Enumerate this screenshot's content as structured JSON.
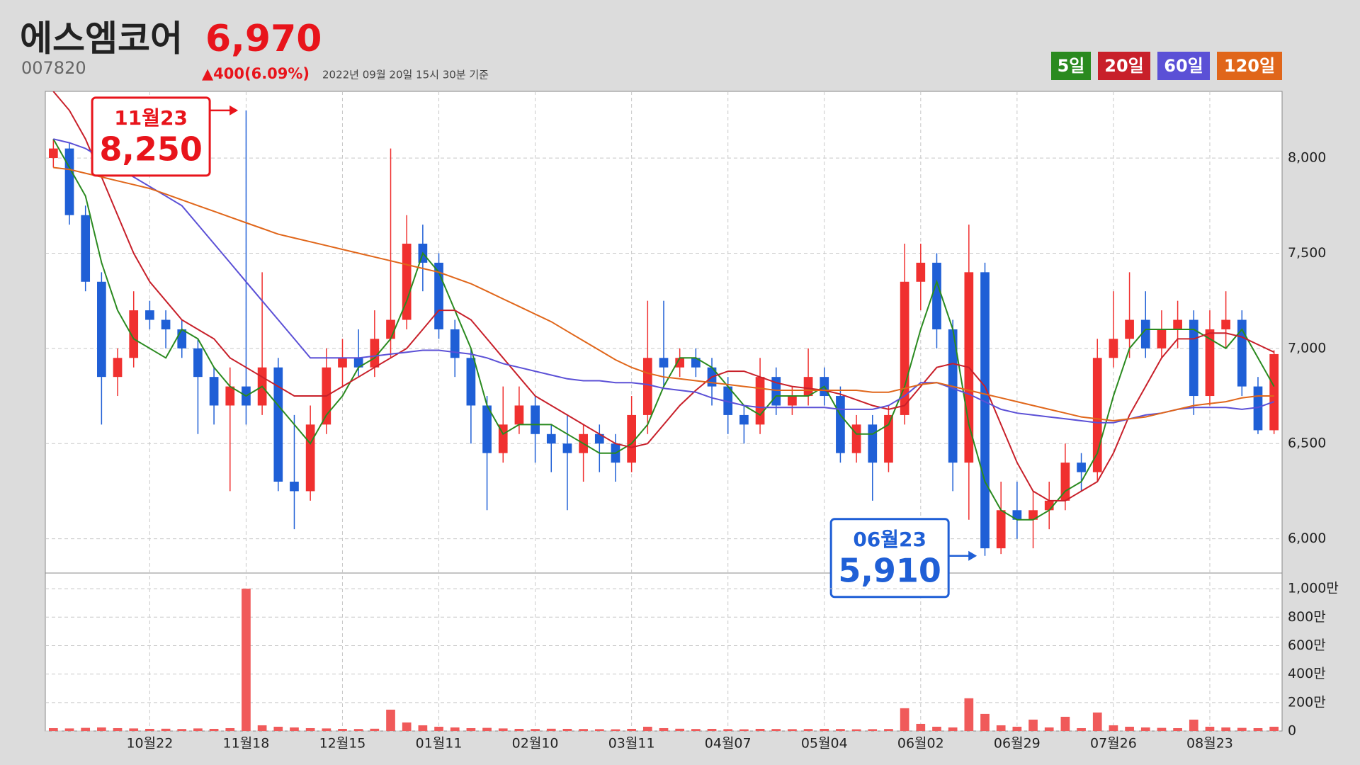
{
  "header": {
    "name": "에스엠코어",
    "price": "6,970",
    "code": "007820",
    "change": "▲400(6.09%)",
    "timestamp": "2022년 09월 20일 15시 30분 기준"
  },
  "chart_data": [
    {
      "type": "candlestick",
      "up_color": "#f0302f",
      "down_color": "#1f5fd6",
      "grid": true,
      "categories": [
        null,
        null,
        null,
        null,
        null,
        null,
        "10월22",
        null,
        null,
        null,
        null,
        null,
        "11월18",
        null,
        null,
        null,
        null,
        null,
        "12월15",
        null,
        null,
        null,
        null,
        null,
        "01월11",
        null,
        null,
        null,
        null,
        null,
        "02월10",
        null,
        null,
        null,
        null,
        null,
        "03월11",
        null,
        null,
        null,
        null,
        null,
        "04월07",
        null,
        null,
        null,
        null,
        null,
        "05월04",
        null,
        null,
        null,
        null,
        null,
        "06월02",
        null,
        null,
        null,
        null,
        null,
        "06월29",
        null,
        null,
        null,
        null,
        null,
        "07월26",
        null,
        null,
        null,
        null,
        null,
        "08월23",
        null,
        null,
        null,
        null
      ],
      "open": [
        8000,
        8050,
        7700,
        7350,
        6850,
        6950,
        7200,
        7150,
        7100,
        7000,
        6850,
        6700,
        6800,
        6700,
        6900,
        6300,
        6250,
        6600,
        6900,
        6950,
        6900,
        7050,
        7150,
        7550,
        7450,
        7100,
        6950,
        6700,
        6450,
        6600,
        6700,
        6550,
        6500,
        6450,
        6550,
        6500,
        6400,
        6650,
        6950,
        6900,
        6950,
        6900,
        6800,
        6650,
        6600,
        6850,
        6700,
        6750,
        6850,
        6750,
        6450,
        6600,
        6400,
        6650,
        7350,
        7450,
        7100,
        6400,
        7400,
        5950,
        6150,
        6100,
        6150,
        6200,
        6400,
        6350,
        6950,
        7050,
        7150,
        7000,
        7100,
        7150,
        6750,
        7100,
        7150,
        6800,
        6570
      ],
      "high": [
        8100,
        8080,
        7750,
        7400,
        7000,
        7300,
        7250,
        7200,
        7150,
        7050,
        6900,
        6900,
        8250,
        7400,
        6950,
        6650,
        6700,
        7000,
        7050,
        7100,
        7200,
        8050,
        7700,
        7650,
        7500,
        7150,
        7000,
        6750,
        6800,
        6800,
        6750,
        6600,
        6650,
        6600,
        6600,
        6550,
        6750,
        7250,
        7250,
        7000,
        7000,
        6950,
        6850,
        6700,
        6950,
        6900,
        6800,
        7000,
        6900,
        6800,
        6650,
        6650,
        6700,
        7550,
        7550,
        7500,
        7150,
        7650,
        7450,
        6300,
        6300,
        6250,
        6300,
        6500,
        6450,
        7050,
        7300,
        7400,
        7300,
        7200,
        7250,
        7200,
        7200,
        7300,
        7200,
        6850,
        6990
      ],
      "low": [
        7950,
        7650,
        7300,
        6600,
        6750,
        6900,
        7100,
        7000,
        6950,
        6550,
        6600,
        6250,
        6600,
        6650,
        6250,
        6050,
        6200,
        6550,
        6800,
        6850,
        6850,
        6950,
        7100,
        7300,
        7050,
        6850,
        6500,
        6150,
        6400,
        6550,
        6400,
        6350,
        6150,
        6300,
        6350,
        6300,
        6350,
        6550,
        6800,
        6850,
        6850,
        6700,
        6550,
        6500,
        6550,
        6650,
        6650,
        6700,
        6700,
        6400,
        6400,
        6200,
        6350,
        6600,
        7200,
        7000,
        6250,
        6100,
        5910,
        5920,
        6000,
        5950,
        6050,
        6150,
        6250,
        6300,
        6900,
        6950,
        6950,
        6950,
        7000,
        6650,
        6700,
        7000,
        6750,
        6550,
        6550
      ],
      "close": [
        8050,
        7700,
        7350,
        6850,
        6950,
        7200,
        7150,
        7100,
        7000,
        6850,
        6700,
        6800,
        6700,
        6900,
        6300,
        6250,
        6600,
        6900,
        6950,
        6900,
        7050,
        7150,
        7550,
        7450,
        7100,
        6950,
        6700,
        6450,
        6600,
        6700,
        6550,
        6500,
        6450,
        6550,
        6500,
        6400,
        6650,
        6950,
        6900,
        6950,
        6900,
        6800,
        6650,
        6600,
        6850,
        6700,
        6750,
        6850,
        6750,
        6450,
        6600,
        6400,
        6650,
        7350,
        7450,
        7100,
        6400,
        7400,
        5950,
        6150,
        6100,
        6150,
        6200,
        6400,
        6350,
        6950,
        7050,
        7150,
        7000,
        7100,
        7150,
        6750,
        7100,
        7150,
        6800,
        6570,
        6970
      ],
      "series": [
        {
          "name": "5일",
          "color": "#2a8a1f",
          "values": [
            8100,
            7950,
            7800,
            7450,
            7200,
            7050,
            7000,
            6950,
            7100,
            7050,
            6900,
            6800,
            6750,
            6800,
            6700,
            6600,
            6500,
            6650,
            6750,
            6900,
            6950,
            7050,
            7250,
            7500,
            7400,
            7200,
            7000,
            6700,
            6550,
            6600,
            6600,
            6600,
            6550,
            6500,
            6450,
            6450,
            6500,
            6600,
            6800,
            6950,
            6950,
            6900,
            6800,
            6700,
            6650,
            6750,
            6750,
            6750,
            6800,
            6650,
            6550,
            6550,
            6600,
            6800,
            7100,
            7350,
            7100,
            6600,
            6300,
            6150,
            6100,
            6100,
            6150,
            6250,
            6300,
            6450,
            6750,
            7000,
            7100,
            7100,
            7100,
            7100,
            7050,
            7000,
            7100,
            6950,
            6800
          ]
        },
        {
          "name": "20일",
          "color": "#c8202a",
          "values": [
            8350,
            8250,
            8100,
            7900,
            7700,
            7500,
            7350,
            7250,
            7150,
            7100,
            7050,
            6950,
            6900,
            6850,
            6800,
            6750,
            6750,
            6750,
            6800,
            6850,
            6900,
            6950,
            7000,
            7100,
            7200,
            7200,
            7150,
            7050,
            6950,
            6850,
            6750,
            6700,
            6650,
            6600,
            6550,
            6500,
            6480,
            6500,
            6600,
            6700,
            6780,
            6850,
            6880,
            6880,
            6850,
            6820,
            6800,
            6790,
            6780,
            6760,
            6730,
            6700,
            6680,
            6700,
            6800,
            6900,
            6920,
            6900,
            6800,
            6600,
            6400,
            6250,
            6200,
            6200,
            6250,
            6300,
            6450,
            6650,
            6800,
            6950,
            7050,
            7050,
            7080,
            7080,
            7060,
            7020,
            6980
          ]
        },
        {
          "name": "60일",
          "color": "#5b50d6",
          "values": [
            8100,
            8080,
            8050,
            8000,
            7950,
            7900,
            7850,
            7800,
            7750,
            7650,
            7550,
            7450,
            7350,
            7250,
            7150,
            7050,
            6950,
            6950,
            6950,
            6950,
            6960,
            6970,
            6980,
            6990,
            6990,
            6980,
            6970,
            6950,
            6920,
            6900,
            6880,
            6860,
            6840,
            6830,
            6830,
            6820,
            6820,
            6810,
            6790,
            6780,
            6770,
            6740,
            6720,
            6700,
            6690,
            6690,
            6690,
            6690,
            6690,
            6680,
            6680,
            6680,
            6700,
            6750,
            6820,
            6820,
            6790,
            6760,
            6720,
            6680,
            6660,
            6650,
            6640,
            6630,
            6620,
            6610,
            6610,
            6630,
            6650,
            6660,
            6680,
            6690,
            6690,
            6690,
            6680,
            6690,
            6720
          ]
        },
        {
          "name": "120일",
          "color": "#e0661a",
          "values": [
            7950,
            7940,
            7920,
            7900,
            7880,
            7860,
            7840,
            7810,
            7780,
            7750,
            7720,
            7690,
            7660,
            7630,
            7600,
            7580,
            7560,
            7540,
            7520,
            7500,
            7480,
            7460,
            7440,
            7420,
            7400,
            7370,
            7340,
            7300,
            7260,
            7220,
            7180,
            7140,
            7090,
            7040,
            6990,
            6940,
            6900,
            6870,
            6850,
            6840,
            6830,
            6820,
            6810,
            6800,
            6790,
            6780,
            6780,
            6780,
            6780,
            6780,
            6780,
            6770,
            6770,
            6790,
            6810,
            6820,
            6800,
            6780,
            6760,
            6740,
            6720,
            6700,
            6680,
            6660,
            6640,
            6630,
            6620,
            6630,
            6640,
            6660,
            6680,
            6700,
            6710,
            6720,
            6740,
            6750,
            6750
          ]
        }
      ],
      "ylim": [
        5820,
        8350
      ],
      "yticks": [
        {
          "value": 6000,
          "label": "6,000"
        },
        {
          "value": 6500,
          "label": "6,500"
        },
        {
          "value": 7000,
          "label": "7,000"
        },
        {
          "value": 7500,
          "label": "7,500"
        },
        {
          "value": 8000,
          "label": "8,000"
        }
      ],
      "annotations": [
        {
          "date": "11월23",
          "value": 8250,
          "label": "8,250",
          "color": "#e8141b"
        },
        {
          "date": "06월23",
          "value": 5910,
          "label": "5,910",
          "color": "#1f5fd6"
        }
      ]
    },
    {
      "type": "bar",
      "color": "#f05a5a",
      "values": [
        20,
        18,
        22,
        25,
        20,
        18,
        15,
        16,
        14,
        18,
        15,
        20,
        1000,
        40,
        30,
        25,
        20,
        18,
        15,
        14,
        16,
        150,
        60,
        40,
        30,
        25,
        20,
        22,
        18,
        15,
        14,
        16,
        15,
        14,
        13,
        12,
        15,
        30,
        20,
        16,
        14,
        15,
        13,
        12,
        15,
        14,
        13,
        14,
        15,
        14,
        12,
        13,
        14,
        160,
        50,
        30,
        25,
        230,
        120,
        40,
        30,
        80,
        25,
        100,
        20,
        130,
        40,
        30,
        25,
        22,
        20,
        80,
        30,
        25,
        22,
        20,
        30
      ],
      "ylim": [
        0,
        1110
      ],
      "yticks": [
        0,
        {
          "value": 200,
          "label": "200만"
        },
        {
          "value": 400,
          "label": "400만"
        },
        {
          "value": 600,
          "label": "600만"
        },
        {
          "value": 800,
          "label": "800만"
        },
        {
          "value": 1000,
          "label": "1,000만"
        }
      ]
    }
  ]
}
